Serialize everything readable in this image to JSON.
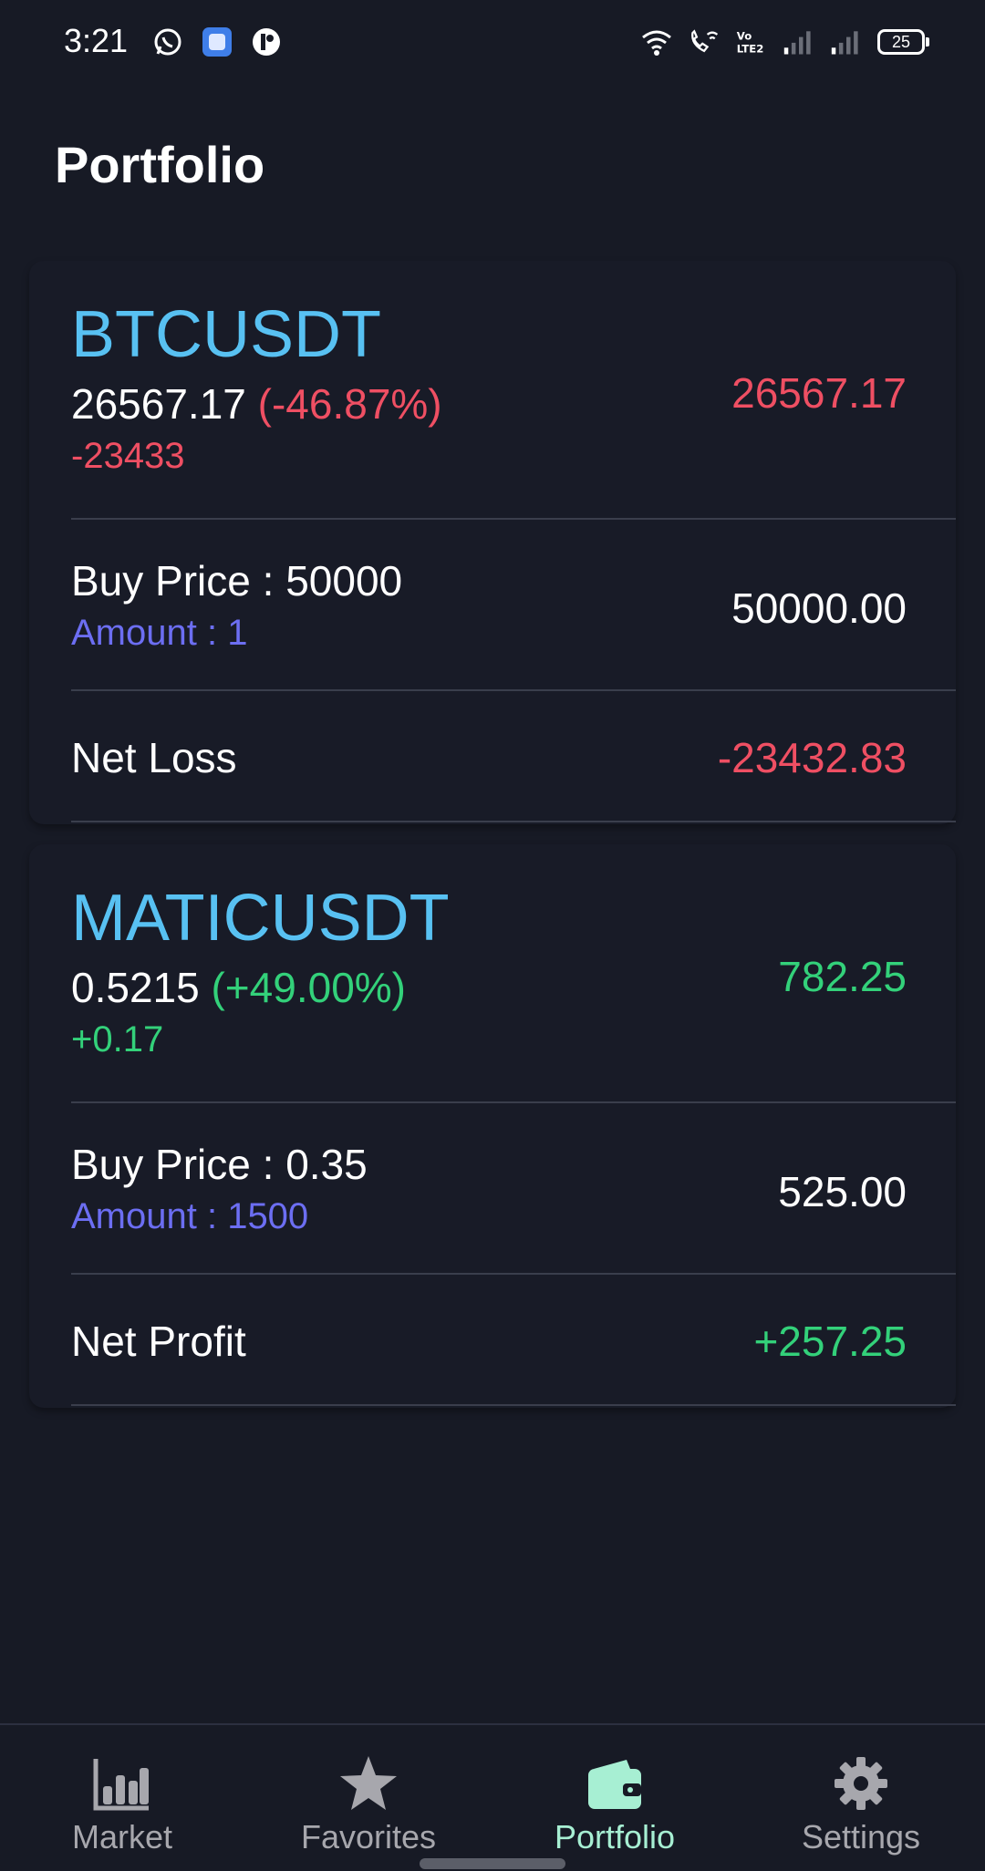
{
  "status_bar": {
    "time": "3:21",
    "left_icons": [
      "whatsapp-icon",
      "app-square-icon",
      "app-round-icon"
    ],
    "right_icons": [
      "wifi-icon",
      "wifi-calling-icon",
      "volte-icon",
      "signal-icon",
      "signal-icon"
    ],
    "battery_level": "25"
  },
  "header": {
    "title": "Portfolio"
  },
  "holdings": [
    {
      "symbol": "BTCUSDT",
      "current_price": "26567.17",
      "change_percent": "(-46.87%)",
      "change_value": "-23433",
      "current_value": "26567.17",
      "buy_price_label": "Buy Price : 50000",
      "amount_label": "Amount : 1",
      "buy_value": "50000.00",
      "net_label": "Net Loss",
      "net_value": "-23432.83",
      "trend": "loss"
    },
    {
      "symbol": "MATICUSDT",
      "current_price": "0.5215",
      "change_percent": "(+49.00%)",
      "change_value": "+0.17",
      "current_value": "782.25",
      "buy_price_label": "Buy Price : 0.35",
      "amount_label": "Amount : 1500",
      "buy_value": "525.00",
      "net_label": "Net Profit",
      "net_value": "+257.25",
      "trend": "profit"
    }
  ],
  "bottom_nav": {
    "items": [
      {
        "label": "Market",
        "icon": "bar-chart-icon",
        "active": false
      },
      {
        "label": "Favorites",
        "icon": "star-icon",
        "active": false
      },
      {
        "label": "Portfolio",
        "icon": "wallet-icon",
        "active": true
      },
      {
        "label": "Settings",
        "icon": "gear-icon",
        "active": false
      }
    ]
  },
  "colors": {
    "background": "#171a25",
    "symbol": "#58c1f2",
    "loss": "#ef4f63",
    "profit": "#33d17a",
    "amount": "#6c6ef2",
    "nav_active": "#a7efd3",
    "nav_inactive": "#a7a7ad"
  }
}
